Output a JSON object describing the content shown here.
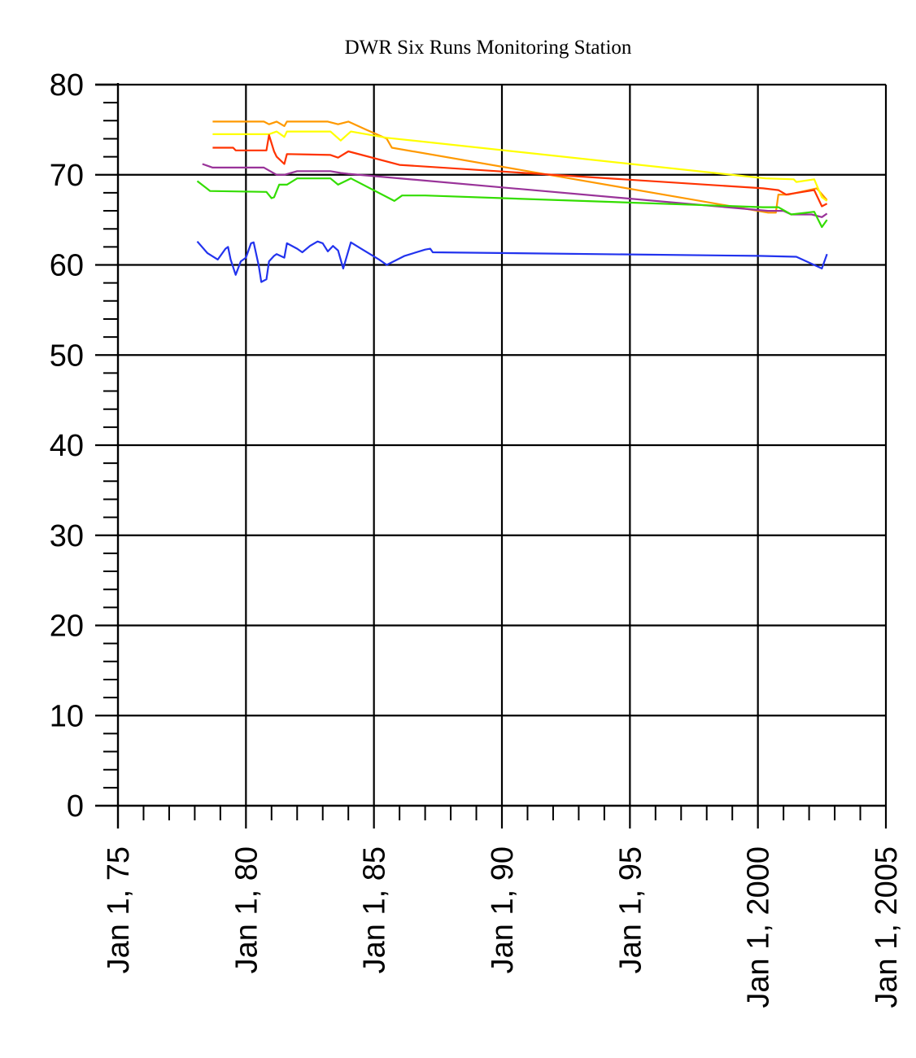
{
  "chart_data": {
    "type": "line",
    "title": "DWR Six Runs Monitoring Station",
    "xlabel": "",
    "ylabel": "",
    "xlim": [
      1975.0,
      2005.0
    ],
    "ylim": [
      0,
      80
    ],
    "grid": true,
    "legend": "none",
    "x_ticks": [
      {
        "value": 1975.0,
        "label": "Jan 1, 75"
      },
      {
        "value": 1980.0,
        "label": "Jan 1, 80"
      },
      {
        "value": 1985.0,
        "label": "Jan 1, 85"
      },
      {
        "value": 1990.0,
        "label": "Jan 1, 90"
      },
      {
        "value": 1995.0,
        "label": "Jan 1, 95"
      },
      {
        "value": 2000.0,
        "label": "Jan 1, 2000"
      },
      {
        "value": 2005.0,
        "label": "Jan 1, 2005"
      }
    ],
    "y_ticks": [
      {
        "value": 0,
        "label": "0"
      },
      {
        "value": 10,
        "label": "10"
      },
      {
        "value": 20,
        "label": "20"
      },
      {
        "value": 30,
        "label": "30"
      },
      {
        "value": 40,
        "label": "40"
      },
      {
        "value": 50,
        "label": "50"
      },
      {
        "value": 60,
        "label": "60"
      },
      {
        "value": 70,
        "label": "70"
      },
      {
        "value": 80,
        "label": "80"
      }
    ],
    "series": [
      {
        "color": "#ff9900",
        "points": [
          [
            1978.7,
            75.9
          ],
          [
            1980.7,
            75.9
          ],
          [
            1980.9,
            75.6
          ],
          [
            1981.2,
            75.9
          ],
          [
            1981.5,
            75.4
          ],
          [
            1981.6,
            75.9
          ],
          [
            1983.2,
            75.9
          ],
          [
            1983.6,
            75.6
          ],
          [
            1984.0,
            75.9
          ],
          [
            1984.7,
            75.0
          ],
          [
            1985.5,
            74.0
          ],
          [
            1985.7,
            73.0
          ],
          [
            2000.4,
            65.8
          ],
          [
            2000.7,
            65.8
          ],
          [
            2000.8,
            67.8
          ],
          [
            2001.2,
            67.8
          ],
          [
            2002.3,
            68.5
          ],
          [
            2002.7,
            67.2
          ]
        ]
      },
      {
        "color": "#ffff00",
        "points": [
          [
            1978.7,
            74.5
          ],
          [
            1980.9,
            74.5
          ],
          [
            1981.2,
            74.8
          ],
          [
            1981.5,
            74.2
          ],
          [
            1981.6,
            74.8
          ],
          [
            1983.3,
            74.8
          ],
          [
            1983.7,
            73.8
          ],
          [
            1984.1,
            74.8
          ],
          [
            1985.5,
            74.1
          ],
          [
            2000.3,
            69.6
          ],
          [
            2001.4,
            69.5
          ],
          [
            2001.5,
            69.2
          ],
          [
            2002.2,
            69.5
          ],
          [
            2002.5,
            67.5
          ],
          [
            2002.7,
            67.1
          ]
        ]
      },
      {
        "color": "#ff3300",
        "points": [
          [
            1978.7,
            73.0
          ],
          [
            1979.5,
            73.0
          ],
          [
            1979.6,
            72.7
          ],
          [
            1980.8,
            72.7
          ],
          [
            1980.9,
            74.4
          ],
          [
            1981.1,
            72.6
          ],
          [
            1981.2,
            72.0
          ],
          [
            1981.5,
            71.2
          ],
          [
            1981.6,
            72.3
          ],
          [
            1983.3,
            72.2
          ],
          [
            1983.6,
            71.9
          ],
          [
            1984.0,
            72.6
          ],
          [
            1986.0,
            71.1
          ],
          [
            2000.2,
            68.5
          ],
          [
            2000.8,
            68.3
          ],
          [
            2001.1,
            67.8
          ],
          [
            2002.2,
            68.3
          ],
          [
            2002.5,
            66.5
          ],
          [
            2002.7,
            66.8
          ]
        ]
      },
      {
        "color": "#993399",
        "points": [
          [
            1978.3,
            71.2
          ],
          [
            1978.7,
            70.8
          ],
          [
            1980.7,
            70.8
          ],
          [
            1981.2,
            70.0
          ],
          [
            1981.5,
            70.0
          ],
          [
            1982.0,
            70.4
          ],
          [
            1983.3,
            70.4
          ],
          [
            1983.7,
            70.2
          ],
          [
            1984.0,
            70.1
          ],
          [
            2000.4,
            66.0
          ],
          [
            2001.0,
            66.0
          ],
          [
            2001.3,
            65.6
          ],
          [
            2002.1,
            65.6
          ],
          [
            2002.5,
            65.3
          ],
          [
            2002.7,
            65.7
          ]
        ]
      },
      {
        "color": "#33dd00",
        "points": [
          [
            1978.1,
            69.3
          ],
          [
            1978.6,
            68.2
          ],
          [
            1980.8,
            68.1
          ],
          [
            1981.0,
            67.4
          ],
          [
            1981.1,
            67.5
          ],
          [
            1981.3,
            68.9
          ],
          [
            1981.6,
            68.9
          ],
          [
            1982.0,
            69.6
          ],
          [
            1983.3,
            69.6
          ],
          [
            1983.6,
            68.9
          ],
          [
            1984.1,
            69.6
          ],
          [
            1985.8,
            67.1
          ],
          [
            1986.1,
            67.7
          ],
          [
            1987.0,
            67.7
          ],
          [
            2000.2,
            66.4
          ],
          [
            2000.8,
            66.4
          ],
          [
            2001.3,
            65.6
          ],
          [
            2002.2,
            65.9
          ],
          [
            2002.5,
            64.2
          ],
          [
            2002.7,
            65.0
          ]
        ]
      },
      {
        "color": "#2233ee",
        "points": [
          [
            1978.1,
            62.6
          ],
          [
            1978.5,
            61.3
          ],
          [
            1978.9,
            60.6
          ],
          [
            1979.2,
            61.8
          ],
          [
            1979.3,
            62.0
          ],
          [
            1979.4,
            60.6
          ],
          [
            1979.6,
            58.9
          ],
          [
            1979.8,
            60.4
          ],
          [
            1980.0,
            60.8
          ],
          [
            1980.2,
            62.4
          ],
          [
            1980.3,
            62.5
          ],
          [
            1980.5,
            59.9
          ],
          [
            1980.6,
            58.1
          ],
          [
            1980.8,
            58.4
          ],
          [
            1980.9,
            60.4
          ],
          [
            1981.1,
            61.0
          ],
          [
            1981.2,
            61.2
          ],
          [
            1981.5,
            60.8
          ],
          [
            1981.6,
            62.4
          ],
          [
            1982.0,
            61.8
          ],
          [
            1982.2,
            61.4
          ],
          [
            1982.5,
            62.1
          ],
          [
            1982.8,
            62.6
          ],
          [
            1983.0,
            62.4
          ],
          [
            1983.2,
            61.5
          ],
          [
            1983.4,
            62.1
          ],
          [
            1983.6,
            61.6
          ],
          [
            1983.8,
            59.6
          ],
          [
            1984.1,
            62.5
          ],
          [
            1984.5,
            61.8
          ],
          [
            1985.2,
            60.6
          ],
          [
            1985.5,
            60.0
          ],
          [
            1986.2,
            61.0
          ],
          [
            1987.0,
            61.7
          ],
          [
            1987.2,
            61.8
          ],
          [
            1987.3,
            61.4
          ],
          [
            2000.0,
            61.0
          ],
          [
            2001.5,
            60.9
          ],
          [
            2002.5,
            59.6
          ],
          [
            2002.7,
            61.2
          ]
        ]
      }
    ]
  }
}
